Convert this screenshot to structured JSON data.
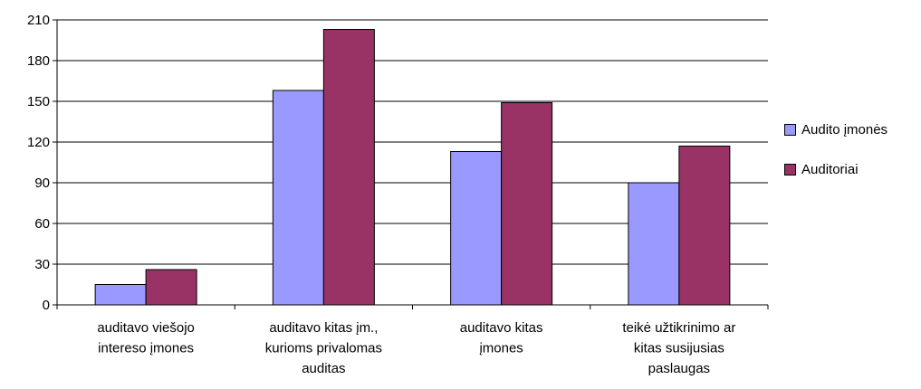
{
  "chart_data": {
    "type": "bar",
    "title": "",
    "xlabel": "",
    "ylabel": "",
    "categories": [
      [
        "auditavo viešojo",
        "intereso įmones"
      ],
      [
        "auditavo kitas įm.,",
        "kurioms privalomas",
        "auditas"
      ],
      [
        "auditavo kitas",
        "įmones"
      ],
      [
        "teikė užtikrinimo ar",
        "kitas susijusias",
        "paslaugas"
      ]
    ],
    "series": [
      {
        "name": "Audito įmonės",
        "values": [
          15,
          158,
          113,
          90
        ],
        "color": "#9999ff"
      },
      {
        "name": "Auditoriai",
        "values": [
          26,
          203,
          149,
          117
        ],
        "color": "#993366"
      }
    ],
    "ylim": [
      0,
      210
    ],
    "yticks": [
      "0",
      "30",
      "60",
      "90",
      "120",
      "150",
      "180",
      "210"
    ],
    "grid": true,
    "legend_position": "right"
  }
}
